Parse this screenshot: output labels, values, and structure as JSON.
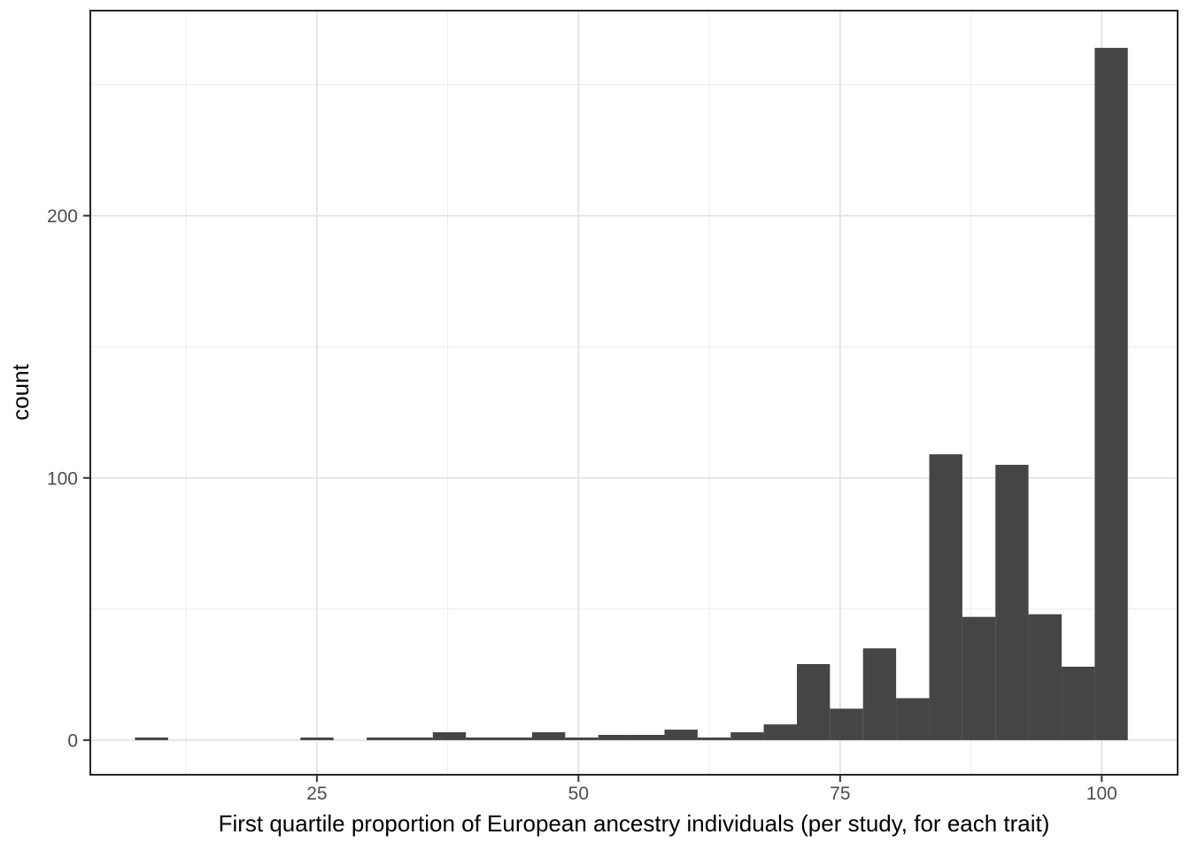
{
  "page": {
    "background_color": "#FFFFFF"
  },
  "chart_data": {
    "type": "bar",
    "subtype": "histogram",
    "title": "",
    "xlabel": "First quartile proportion of European ancestry individuals (per study, for each trait)",
    "ylabel": "count",
    "legend_position": "none",
    "grid": true,
    "bar_color": "#454545",
    "panel_background": "#FFFFFF",
    "panel_border_color": "#262626",
    "major_grid_color": "#E3E3E3",
    "minor_grid_color": "#EFEFEF",
    "tick_mark_color": "#333333",
    "tick_label_color": "#4D4D4D",
    "axis_title_color": "#000000",
    "xlim": [
      3.35,
      107.25
    ],
    "ylim": [
      -13.2,
      278.2
    ],
    "x_ticks": [
      25,
      50,
      75,
      100
    ],
    "x_tick_labels": [
      "25",
      "50",
      "75",
      "100"
    ],
    "y_ticks": [
      0,
      100,
      200
    ],
    "y_tick_labels": [
      "0",
      "100",
      "200"
    ],
    "x_minor_gridlines": [
      12.5,
      37.5,
      62.5,
      87.5
    ],
    "y_minor_gridlines": [
      50,
      150,
      250
    ],
    "bin_width": 3.16,
    "bin_edges": [
      7.62,
      10.78,
      13.94,
      17.11,
      20.27,
      23.43,
      26.59,
      29.76,
      32.92,
      36.08,
      39.24,
      42.4,
      45.57,
      48.73,
      51.89,
      55.05,
      58.22,
      61.38,
      64.54,
      67.7,
      70.87,
      74.03,
      77.19,
      80.35,
      83.52,
      86.68,
      89.84,
      93.0,
      96.17,
      99.33,
      102.49
    ],
    "counts": [
      1,
      0,
      0,
      0,
      0,
      1,
      0,
      1,
      1,
      3,
      1,
      1,
      3,
      1,
      2,
      2,
      4,
      1,
      3,
      6,
      29,
      12,
      35,
      16,
      109,
      47,
      105,
      48,
      28,
      264
    ]
  }
}
